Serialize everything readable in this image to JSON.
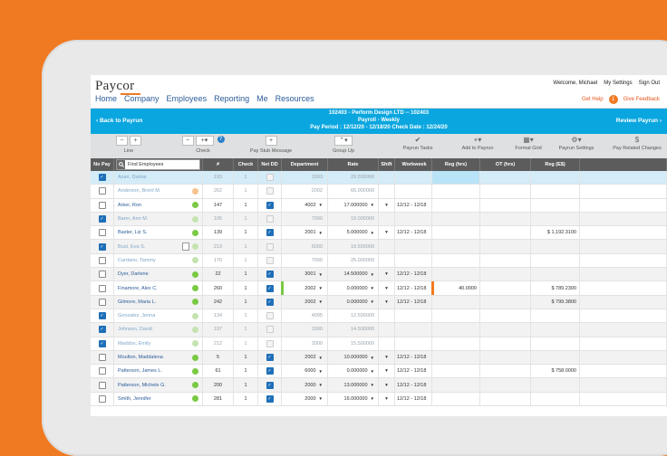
{
  "header": {
    "logo": "Paycor",
    "nav": [
      "Home",
      "Company",
      "Employees",
      "Reporting",
      "Me",
      "Resources"
    ],
    "util_links": [
      "Welcome, Michael",
      "My Settings",
      "Sign Out"
    ],
    "help_label": "Get Help",
    "help_count": "1",
    "feedback_label": "Give Feedback"
  },
  "payroll_bar": {
    "back_label": "Back to Payrun",
    "review_label": "Review Payrun",
    "line1": "102403 - Perform Design LTD -- 102403",
    "line2": "Payroll - Weekly",
    "line3": "Pay Period : 12/12/20 - 12/18/20   Check Date : 12/24/20"
  },
  "toolbar": {
    "line_label": "Line",
    "check_label": "Check",
    "check_count": "1",
    "pay_stub_label": "Pay Stub Message",
    "group_up_label": "Group Up",
    "payrun_tasks_label": "Payrun Tasks",
    "add_to_payrun_label": "Add to Payrun",
    "format_grid_label": "Format Grid",
    "payrun_settings_label": "Payrun Settings",
    "pay_related_label": "Pay Related Changes"
  },
  "table": {
    "columns": {
      "no_pay": "No Pay",
      "find_placeholder": "Find Employees",
      "num": "#",
      "check": "Check",
      "net_dd": "Net DD",
      "department": "Department",
      "rate": "Rate",
      "shift": "Shift",
      "workweek": "Workweek",
      "reg_hrs": "Reg (hrs)",
      "ot_hrs": "OT (hrs)",
      "reg_dollars": "Reg (E$)"
    },
    "rows": [
      {
        "nopay": true,
        "name": "Azari, Dalma",
        "num": "193",
        "check": "1",
        "netdd": false,
        "dept": "1003",
        "rate": "29.500000",
        "shift": "",
        "week": "",
        "reg": "",
        "ot": "",
        "regd": "",
        "dot": "none",
        "state": "sel dim"
      },
      {
        "nopay": false,
        "name": "Anderson, Brent M.",
        "num": "262",
        "check": "1",
        "netdd": false,
        "dept": "2002",
        "rate": "65.000000",
        "shift": "",
        "week": "",
        "reg": "",
        "ot": "",
        "regd": "",
        "dot": "amber",
        "state": "dim"
      },
      {
        "nopay": false,
        "name": "Arker, Ron",
        "num": "147",
        "check": "1",
        "netdd": true,
        "dept": "4002",
        "rate": "17.000000",
        "shift": "▾",
        "week": "12/12 - 12/18",
        "reg": "",
        "ot": "",
        "regd": "",
        "dot": "green",
        "state": ""
      },
      {
        "nopay": true,
        "name": "Barer, Ann M.",
        "num": "105",
        "check": "1",
        "netdd": false,
        "dept": "7000",
        "rate": "19.000000",
        "shift": "",
        "week": "",
        "reg": "",
        "ot": "",
        "regd": "",
        "dot": "light",
        "state": "alt dim"
      },
      {
        "nopay": false,
        "name": "Baxter, Liz S.",
        "num": "139",
        "check": "1",
        "netdd": true,
        "dept": "2001",
        "rate": "5.000000",
        "shift": "▾",
        "week": "12/12 - 12/18",
        "reg": "",
        "ot": "",
        "regd": "$ 1,192.3100",
        "dot": "green",
        "state": ""
      },
      {
        "nopay": true,
        "name": "Bust, Eva S.",
        "num": "213",
        "check": "1",
        "netdd": false,
        "dept": "5000",
        "rate": "19.500000",
        "shift": "",
        "week": "",
        "reg": "",
        "ot": "",
        "regd": "",
        "dot": "light",
        "state": "alt dim",
        "doc": true
      },
      {
        "nopay": false,
        "name": "Cardano, Tammy",
        "num": "170",
        "check": "1",
        "netdd": false,
        "dept": "7000",
        "rate": "25.000000",
        "shift": "",
        "week": "",
        "reg": "",
        "ot": "",
        "regd": "",
        "dot": "light",
        "state": "dim"
      },
      {
        "nopay": false,
        "name": "Dyer, Darlene",
        "num": "22",
        "check": "1",
        "netdd": true,
        "dept": "3001",
        "rate": "14.500000",
        "shift": "▾",
        "week": "12/12 - 12/18",
        "reg": "",
        "ot": "",
        "regd": "",
        "dot": "green",
        "state": "alt"
      },
      {
        "nopay": false,
        "name": "Finamore, Alex C.",
        "num": "260",
        "check": "1",
        "netdd": true,
        "dept": "2002",
        "rate": "0.000000",
        "shift": "▾",
        "week": "12/12 - 12/18",
        "reg": "40.0000",
        "ot": "",
        "regd": "$ 789.2300",
        "dot": "green",
        "state": "",
        "mark": true
      },
      {
        "nopay": false,
        "name": "Gilmore, Maria L.",
        "num": "242",
        "check": "1",
        "netdd": true,
        "dept": "2002",
        "rate": "0.000000",
        "shift": "▾",
        "week": "12/12 - 12/18",
        "reg": "",
        "ot": "",
        "regd": "$ 799.3800",
        "dot": "green",
        "state": "alt"
      },
      {
        "nopay": true,
        "name": "Gonzalez, Jenna",
        "num": "134",
        "check": "1",
        "netdd": false,
        "dept": "4005",
        "rate": "12.500000",
        "shift": "",
        "week": "",
        "reg": "",
        "ot": "",
        "regd": "",
        "dot": "light",
        "state": "dim"
      },
      {
        "nopay": true,
        "name": "Johnson, David",
        "num": "197",
        "check": "1",
        "netdd": false,
        "dept": "1000",
        "rate": "14.500000",
        "shift": "",
        "week": "",
        "reg": "",
        "ot": "",
        "regd": "",
        "dot": "light",
        "state": "alt dim"
      },
      {
        "nopay": true,
        "name": "Maddox, Emily",
        "num": "212",
        "check": "1",
        "netdd": false,
        "dept": "2000",
        "rate": "15.500000",
        "shift": "",
        "week": "",
        "reg": "",
        "ot": "",
        "regd": "",
        "dot": "light",
        "state": "dim"
      },
      {
        "nopay": false,
        "name": "Moulton, Maddalena",
        "num": "5",
        "check": "1",
        "netdd": true,
        "dept": "2002",
        "rate": "10.000000",
        "shift": "▾",
        "week": "12/12 - 12/18",
        "reg": "",
        "ot": "",
        "regd": "",
        "dot": "green",
        "state": "alt"
      },
      {
        "nopay": false,
        "name": "Patterson, James L.",
        "num": "61",
        "check": "1",
        "netdd": true,
        "dept": "6000",
        "rate": "0.000000",
        "shift": "▾",
        "week": "12/12 - 12/18",
        "reg": "",
        "ot": "",
        "regd": "$ 758.0000",
        "dot": "green",
        "state": ""
      },
      {
        "nopay": false,
        "name": "Patterson, Michele G.",
        "num": "200",
        "check": "1",
        "netdd": true,
        "dept": "2000",
        "rate": "13.000000",
        "shift": "▾",
        "week": "12/12 - 12/18",
        "reg": "",
        "ot": "",
        "regd": "",
        "dot": "green",
        "state": "alt"
      },
      {
        "nopay": false,
        "name": "Smith, Jennifer",
        "num": "281",
        "check": "1",
        "netdd": true,
        "dept": "2000",
        "rate": "16.000000",
        "shift": "▾",
        "week": "12/12 - 12/18",
        "reg": "",
        "ot": "",
        "regd": "",
        "dot": "green",
        "state": ""
      }
    ]
  },
  "colors": {
    "background": "#f07a22",
    "accent_blue": "#0aa6df",
    "status_green": "#7ac943"
  }
}
